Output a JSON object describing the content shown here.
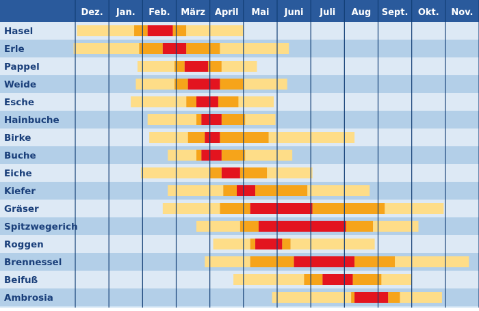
{
  "chart_data": {
    "type": "gantt",
    "title": "",
    "months": [
      "Dez.",
      "Jan.",
      "Feb.",
      "März",
      "April",
      "Mai",
      "Juni",
      "Juli",
      "Aug",
      "Sept.",
      "Okt.",
      "Nov."
    ],
    "intensity_levels": [
      "low",
      "medium",
      "high"
    ],
    "colors": {
      "header_bg": "#2a5a9c",
      "header_text": "#ffffff",
      "label_text": "#1a3f7a",
      "row_light": "#dde9f5",
      "row_dark": "#b3cfe8",
      "gridline": "#123e75",
      "low": "#fedd88",
      "medium": "#f6a41a",
      "high": "#e3141f"
    },
    "note": "segment values are month positions: 0 = start of Dez., 12 = end of Nov.",
    "plants": [
      {
        "name": "Hasel",
        "segments": [
          [
            0.05,
            1.75,
            "low"
          ],
          [
            1.75,
            2.15,
            "medium"
          ],
          [
            2.15,
            2.9,
            "high"
          ],
          [
            2.9,
            3.3,
            "medium"
          ],
          [
            3.3,
            5.0,
            "low"
          ]
        ]
      },
      {
        "name": "Erle",
        "segments": [
          [
            -0.05,
            1.9,
            "low"
          ],
          [
            1.9,
            2.6,
            "medium"
          ],
          [
            2.6,
            3.3,
            "high"
          ],
          [
            3.3,
            4.3,
            "medium"
          ],
          [
            4.3,
            6.35,
            "low"
          ]
        ]
      },
      {
        "name": "Pappel",
        "segments": [
          [
            1.85,
            2.95,
            "low"
          ],
          [
            2.95,
            3.25,
            "medium"
          ],
          [
            3.25,
            3.95,
            "high"
          ],
          [
            3.95,
            4.35,
            "medium"
          ],
          [
            4.35,
            5.4,
            "low"
          ]
        ]
      },
      {
        "name": "Weide",
        "segments": [
          [
            1.8,
            2.95,
            "low"
          ],
          [
            2.95,
            3.35,
            "medium"
          ],
          [
            3.35,
            4.3,
            "high"
          ],
          [
            4.3,
            5.0,
            "medium"
          ],
          [
            5.0,
            6.3,
            "low"
          ]
        ]
      },
      {
        "name": "Esche",
        "segments": [
          [
            1.65,
            3.3,
            "low"
          ],
          [
            3.3,
            3.6,
            "medium"
          ],
          [
            3.6,
            4.25,
            "high"
          ],
          [
            4.25,
            4.85,
            "medium"
          ],
          [
            4.85,
            5.9,
            "low"
          ]
        ]
      },
      {
        "name": "Hainbuche",
        "segments": [
          [
            2.15,
            3.6,
            "low"
          ],
          [
            3.6,
            3.75,
            "medium"
          ],
          [
            3.75,
            4.35,
            "high"
          ],
          [
            4.35,
            5.05,
            "medium"
          ],
          [
            5.05,
            5.95,
            "low"
          ]
        ]
      },
      {
        "name": "Birke",
        "segments": [
          [
            2.2,
            3.35,
            "low"
          ],
          [
            3.35,
            3.85,
            "medium"
          ],
          [
            3.85,
            4.3,
            "high"
          ],
          [
            4.3,
            5.75,
            "medium"
          ],
          [
            5.75,
            8.3,
            "low"
          ]
        ]
      },
      {
        "name": "Buche",
        "segments": [
          [
            2.75,
            3.6,
            "low"
          ],
          [
            3.6,
            3.75,
            "medium"
          ],
          [
            3.75,
            4.35,
            "high"
          ],
          [
            4.35,
            5.05,
            "medium"
          ],
          [
            5.05,
            6.45,
            "low"
          ]
        ]
      },
      {
        "name": "Eiche",
        "segments": [
          [
            1.95,
            4.0,
            "low"
          ],
          [
            4.0,
            4.35,
            "medium"
          ],
          [
            4.35,
            4.9,
            "high"
          ],
          [
            4.9,
            5.7,
            "medium"
          ],
          [
            5.7,
            7.05,
            "low"
          ]
        ]
      },
      {
        "name": "Kiefer",
        "segments": [
          [
            2.75,
            4.4,
            "low"
          ],
          [
            4.4,
            4.8,
            "medium"
          ],
          [
            4.8,
            5.35,
            "high"
          ],
          [
            5.35,
            6.9,
            "medium"
          ],
          [
            6.9,
            8.75,
            "low"
          ]
        ]
      },
      {
        "name": "Gräser",
        "segments": [
          [
            2.6,
            4.3,
            "low"
          ],
          [
            4.3,
            5.2,
            "medium"
          ],
          [
            5.2,
            7.05,
            "high"
          ],
          [
            7.05,
            9.2,
            "medium"
          ],
          [
            9.2,
            10.95,
            "low"
          ]
        ]
      },
      {
        "name": "Spitzwegerich",
        "segments": [
          [
            3.6,
            4.9,
            "low"
          ],
          [
            4.9,
            5.45,
            "medium"
          ],
          [
            5.45,
            8.05,
            "high"
          ],
          [
            8.05,
            8.85,
            "medium"
          ],
          [
            8.85,
            10.2,
            "low"
          ]
        ]
      },
      {
        "name": "Roggen",
        "segments": [
          [
            4.1,
            5.2,
            "low"
          ],
          [
            5.2,
            5.35,
            "medium"
          ],
          [
            5.35,
            6.15,
            "high"
          ],
          [
            6.15,
            6.4,
            "medium"
          ],
          [
            6.4,
            8.9,
            "low"
          ]
        ]
      },
      {
        "name": "Brennessel",
        "segments": [
          [
            3.85,
            5.2,
            "low"
          ],
          [
            5.2,
            6.5,
            "medium"
          ],
          [
            6.5,
            8.3,
            "high"
          ],
          [
            8.3,
            9.5,
            "medium"
          ],
          [
            9.5,
            11.7,
            "low"
          ]
        ]
      },
      {
        "name": "Beifuß",
        "segments": [
          [
            4.7,
            6.8,
            "low"
          ],
          [
            6.8,
            7.35,
            "medium"
          ],
          [
            7.35,
            8.25,
            "high"
          ],
          [
            8.25,
            9.1,
            "medium"
          ],
          [
            9.1,
            10.0,
            "low"
          ]
        ]
      },
      {
        "name": "Ambrosia",
        "segments": [
          [
            5.85,
            8.2,
            "low"
          ],
          [
            8.2,
            8.3,
            "medium"
          ],
          [
            8.3,
            9.3,
            "high"
          ],
          [
            9.3,
            9.65,
            "medium"
          ],
          [
            9.65,
            10.9,
            "low"
          ]
        ]
      }
    ]
  }
}
